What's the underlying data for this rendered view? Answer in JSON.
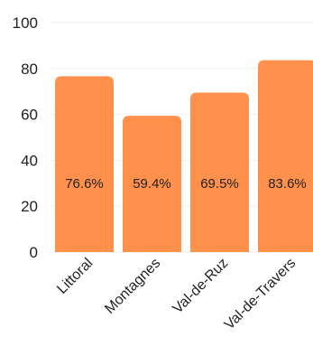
{
  "chart_data": {
    "type": "bar",
    "categories": [
      "Littoral",
      "Montagnes",
      "Val-de-Ruz",
      "Val-de-Travers"
    ],
    "values": [
      76.6,
      59.4,
      69.5,
      83.6
    ],
    "data_labels": [
      "76.6%",
      "59.4%",
      "69.5%",
      "83.6%"
    ],
    "title": "",
    "xlabel": "",
    "ylabel": "",
    "ylim": [
      0,
      100
    ],
    "yticks": [
      0,
      20,
      40,
      60,
      80,
      100
    ],
    "grid": true,
    "bar_color": "#ff914d",
    "legend": "none"
  }
}
